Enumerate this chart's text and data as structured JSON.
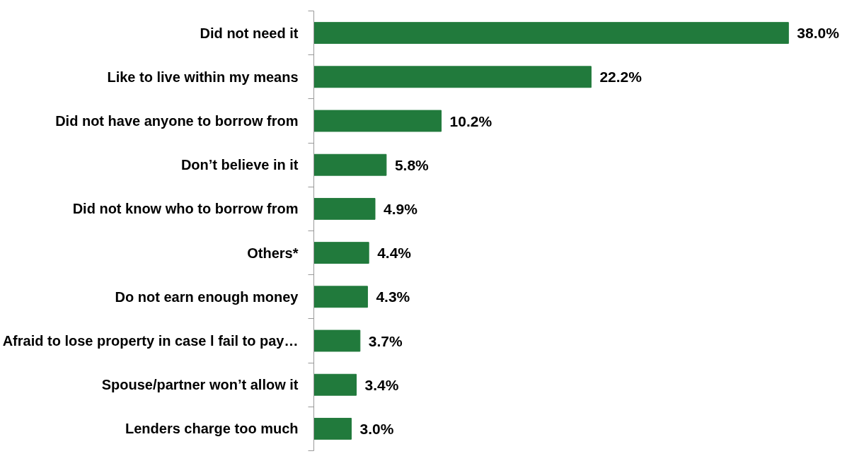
{
  "chart_data": {
    "type": "bar",
    "orientation": "horizontal",
    "categories": [
      "Did not need it",
      "Like to live within my means",
      "Did not have anyone to borrow from",
      "Don’t believe in it",
      "Did not know who to borrow from",
      "Others*",
      "Do not earn enough money",
      "Afraid to lose property in case l fail to pay…",
      "Spouse/partner won’t allow it",
      "Lenders charge too much"
    ],
    "values": [
      38.0,
      22.2,
      10.2,
      5.8,
      4.9,
      4.4,
      4.3,
      3.7,
      3.4,
      3.0
    ],
    "value_labels": [
      "38.0%",
      "22.2%",
      "10.2%",
      "5.8%",
      "4.9%",
      "4.4%",
      "4.3%",
      "3.7%",
      "3.4%",
      "3.0%"
    ],
    "color": "#217a3c"
  }
}
